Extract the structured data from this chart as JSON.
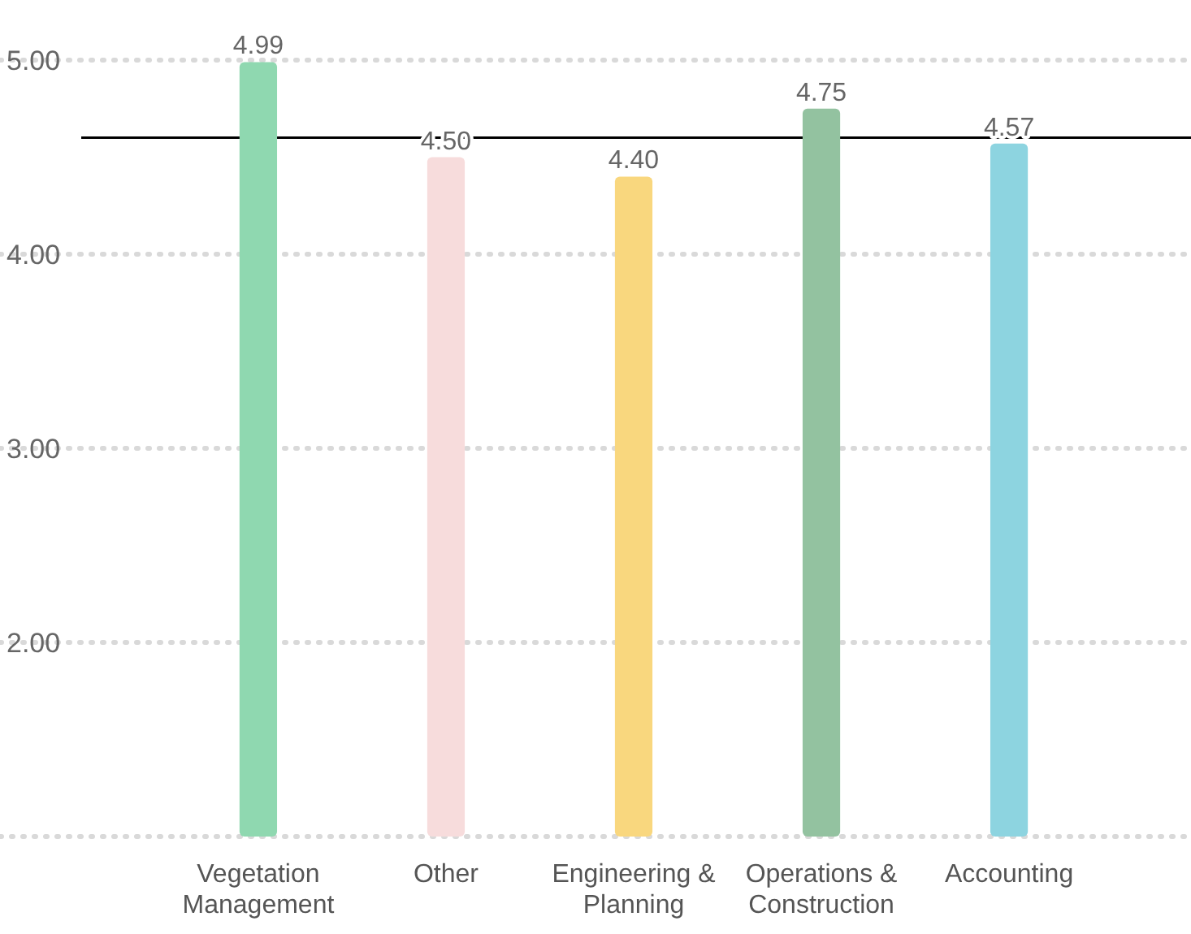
{
  "chart_data": {
    "type": "bar",
    "categories": [
      "Vegetation Management",
      "Other",
      "Engineering & Planning",
      "Operations & Construction",
      "Accounting"
    ],
    "values": [
      4.99,
      4.5,
      4.4,
      4.75,
      4.57
    ],
    "value_labels": [
      "4.99",
      "4.50",
      "4.40",
      "4.75",
      "4.57"
    ],
    "colors": [
      "#8fd8b0",
      "#f7dcdc",
      "#f9d77e",
      "#93c2a0",
      "#8dd4e0"
    ],
    "ylim": [
      1,
      5
    ],
    "yticks": [
      {
        "value": 1,
        "label": null
      },
      {
        "value": 2,
        "label": "2.00"
      },
      {
        "value": 3,
        "label": "3.00"
      },
      {
        "value": 4,
        "label": "4.00"
      },
      {
        "value": 5,
        "label": "5.00"
      }
    ],
    "grid": "y",
    "ref_lines": [
      {
        "axis": "y",
        "value": 4.6,
        "color": "#000000"
      }
    ]
  }
}
